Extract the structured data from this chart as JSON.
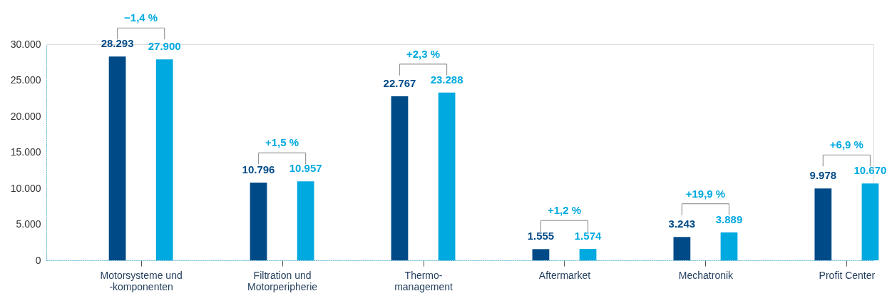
{
  "chart_data": {
    "type": "bar",
    "categories": [
      "Motorsysteme und\n-komponenten",
      "Filtration und\nMotorperipherie",
      "Thermo-\nmanagement",
      "Aftermarket",
      "Mechatronik",
      "Profit Center"
    ],
    "series": [
      {
        "color": "#004a87",
        "values": [
          28293,
          10796,
          22767,
          1555,
          3243,
          9978
        ],
        "value_labels": [
          "28.293",
          "10.796",
          "22.767",
          "1.555",
          "3.243",
          "9.978"
        ]
      },
      {
        "color": "#00a9e0",
        "values": [
          27900,
          10957,
          23288,
          1574,
          3889,
          10670
        ],
        "value_labels": [
          "27.900",
          "10.957",
          "23.288",
          "1.574",
          "3.889",
          "10.670"
        ]
      }
    ],
    "ylim": [
      0,
      30000
    ],
    "yticks": [
      {
        "value": 0,
        "label": "0"
      },
      {
        "value": 5000,
        "label": "5.000"
      },
      {
        "value": 10000,
        "label": "10.000"
      },
      {
        "value": 15000,
        "label": "15.000"
      },
      {
        "value": 20000,
        "label": "20.000"
      },
      {
        "value": 25000,
        "label": "25.000"
      },
      {
        "value": 30000,
        "label": "30.000"
      }
    ],
    "annotations": [
      "−1,4 %",
      "+1,5 %",
      "+2,3 %",
      "+1,2 %",
      "+19,9 %",
      "+6,9 %"
    ],
    "grid": false
  }
}
